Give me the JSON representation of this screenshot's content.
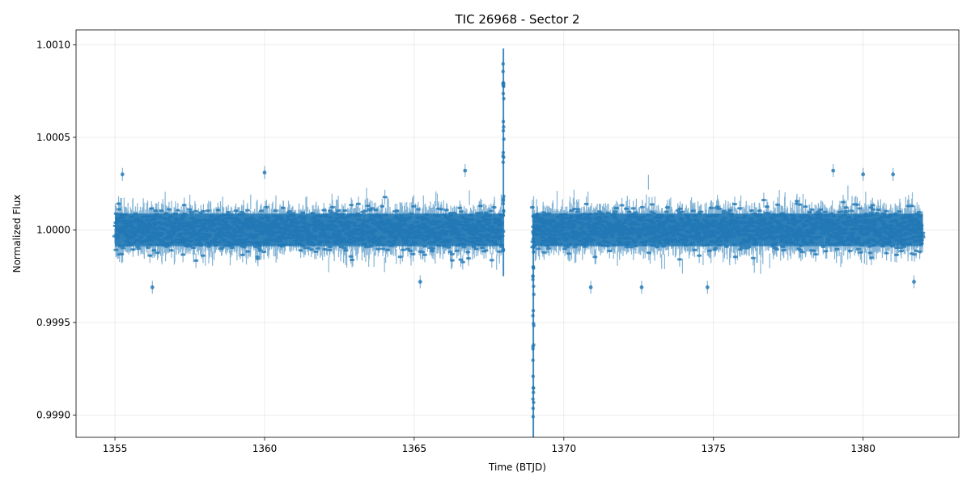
{
  "chart_data": {
    "type": "scatter",
    "title": "TIC 26968 - Sector 2",
    "xlabel": "Time (BTJD)",
    "ylabel": "Normalized Flux",
    "xlim": [
      1353.7,
      1383.2
    ],
    "ylim": [
      0.99888,
      1.00108
    ],
    "x_ticks": [
      1355,
      1360,
      1365,
      1370,
      1375,
      1380
    ],
    "x_tick_labels": [
      "1355",
      "1360",
      "1365",
      "1370",
      "1375",
      "1380"
    ],
    "y_ticks": [
      0.999,
      0.9995,
      1.0,
      1.0005,
      1.001
    ],
    "y_tick_labels": [
      "0.9990",
      "0.9995",
      "1.0000",
      "1.0005",
      "1.0010"
    ],
    "grid": true,
    "series_color": "#1f77b4",
    "series": [
      {
        "segments": [
          {
            "x_start": 1355.0,
            "x_end": 1367.95,
            "baseline": 1.0,
            "scatter_sigma": 5.5e-05,
            "error": 4e-05
          },
          {
            "x_start": 1368.95,
            "x_end": 1382.0,
            "baseline": 1.0,
            "scatter_sigma": 5.5e-05,
            "error": 4e-05
          }
        ],
        "spikes": [
          {
            "x": 1367.98,
            "y_min": 0.99975,
            "y_max": 1.00098
          },
          {
            "x": 1368.98,
            "y_min": 0.99888,
            "y_max": 1.00003
          }
        ],
        "outliers": [
          {
            "x": 1355.25,
            "y": 1.0003
          },
          {
            "x": 1356.25,
            "y": 0.99969
          },
          {
            "x": 1360.0,
            "y": 1.00031
          },
          {
            "x": 1365.2,
            "y": 0.99972
          },
          {
            "x": 1366.7,
            "y": 1.00032
          },
          {
            "x": 1370.9,
            "y": 0.99969
          },
          {
            "x": 1372.6,
            "y": 0.99969
          },
          {
            "x": 1374.8,
            "y": 0.99969
          },
          {
            "x": 1379.0,
            "y": 1.00032
          },
          {
            "x": 1380.0,
            "y": 1.0003
          },
          {
            "x": 1381.0,
            "y": 1.0003
          },
          {
            "x": 1381.7,
            "y": 0.99972
          }
        ]
      }
    ]
  }
}
